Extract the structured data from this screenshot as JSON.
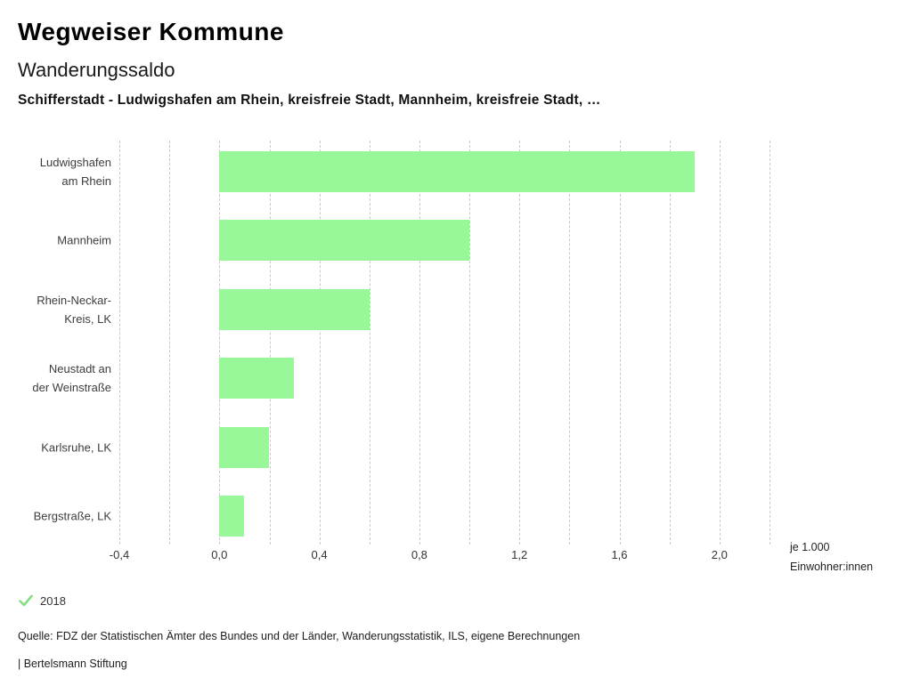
{
  "header": {
    "title": "Wegweiser Kommune",
    "subtitle": "Wanderungssaldo",
    "selection": "Schifferstadt - Ludwigshafen am Rhein, kreisfreie Stadt, Mannheim, kreisfreie Stadt, …"
  },
  "chart_data": {
    "type": "bar",
    "orientation": "horizontal",
    "title": "Wanderungssaldo",
    "categories": [
      "Ludwigshafen am Rhein",
      "Mannheim",
      "Rhein-Neckar-Kreis, LK",
      "Neustadt an der Weinstraße",
      "Karlsruhe, LK",
      "Bergstraße, LK"
    ],
    "category_lines": [
      [
        "Ludwigshafen",
        "am Rhein"
      ],
      [
        "Mannheim"
      ],
      [
        "Rhein-Neckar-",
        "Kreis, LK"
      ],
      [
        "Neustadt an",
        "der Weinstraße"
      ],
      [
        "Karlsruhe, LK"
      ],
      [
        "Bergstraße, LK"
      ]
    ],
    "series": [
      {
        "name": "2018",
        "values": [
          1.9,
          1.0,
          0.6,
          0.3,
          0.2,
          0.1
        ]
      }
    ],
    "xlabel": "je 1.000 Einwohner:innen",
    "unit_lines": [
      "je 1.000",
      "Einwohner:innen"
    ],
    "xlim": [
      -0.4,
      2.2
    ],
    "xticks": [
      {
        "value": -0.4,
        "label": "-0,4"
      },
      {
        "value": 0.0,
        "label": "0,0"
      },
      {
        "value": 0.4,
        "label": "0,4"
      },
      {
        "value": 0.8,
        "label": "0,8"
      },
      {
        "value": 1.2,
        "label": "1,2"
      },
      {
        "value": 1.6,
        "label": "1,6"
      },
      {
        "value": 2.0,
        "label": "2,0"
      }
    ],
    "gridline_step": 0.2,
    "grid": true,
    "legend_position": "bottom-left"
  },
  "legend": {
    "marker": "check-icon",
    "year": "2018"
  },
  "footer": {
    "source": "Quelle: FDZ der Statistischen Ämter des Bundes und der Länder, Wanderungsstatistik, ILS, eigene Berechnungen",
    "brand": "| Bertelsmann Stiftung"
  },
  "colors": {
    "bar": "#98f798",
    "grid": "#c8c8c8",
    "check": "#86dd86"
  }
}
